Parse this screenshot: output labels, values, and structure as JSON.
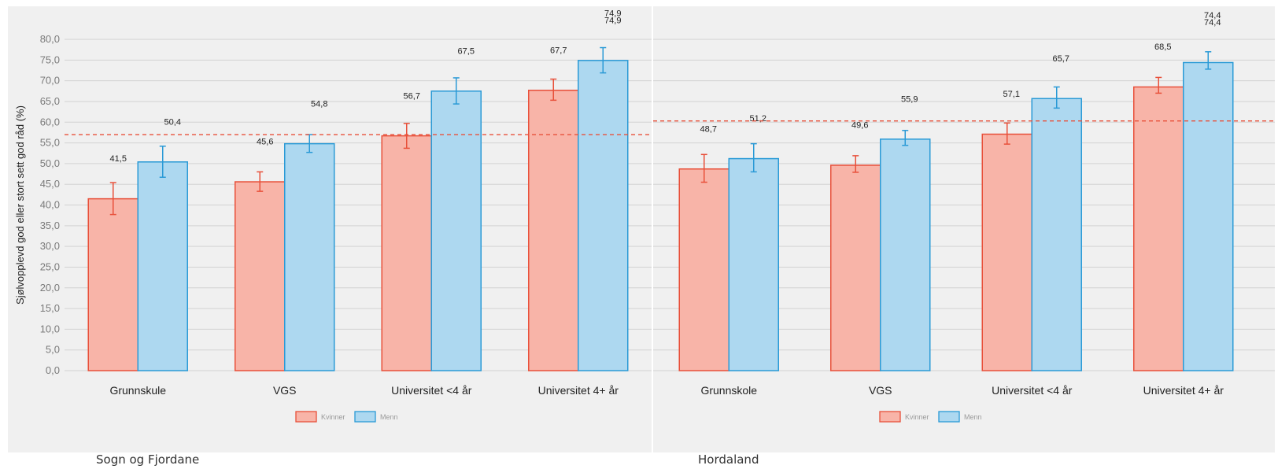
{
  "chart_data": [
    {
      "type": "bar",
      "panel_label": "Sogn og Fjordane",
      "ylabel": "Sjølvopplevd god eller stort sett god råd (%)",
      "ylim": [
        0,
        80
      ],
      "yticks": [
        "0,0",
        "5,0",
        "10,0",
        "15,0",
        "20,0",
        "25,0",
        "30,0",
        "35,0",
        "40,0",
        "45,0",
        "50,0",
        "55,0",
        "60,0",
        "65,0",
        "70,0",
        "75,0",
        "80,0"
      ],
      "categories": [
        "Grunnskule",
        "VGS",
        "Universitet <4 år",
        "Universitet 4+ år"
      ],
      "reference_line": 57.0,
      "series": [
        {
          "name": "Kvinner",
          "color": "#f8b4a8",
          "edge": "#e8503a",
          "values": [
            41.5,
            45.6,
            56.7,
            67.7
          ],
          "err_low": [
            37.7,
            43.3,
            53.7,
            65.3
          ],
          "err_high": [
            45.4,
            48.0,
            59.7,
            70.4
          ],
          "labels": [
            "41,5",
            "45,6",
            "56,7",
            "67,7"
          ]
        },
        {
          "name": "Menn",
          "color": "#add8f0",
          "edge": "#2a9ad6",
          "values": [
            50.4,
            54.8,
            67.5,
            74.9
          ],
          "err_low": [
            46.7,
            52.7,
            64.4,
            71.9
          ],
          "err_high": [
            54.2,
            57.0,
            70.7,
            78.0
          ],
          "labels": [
            "50,4",
            "54,8",
            "67,5",
            "74,9"
          ],
          "extra_labels": [
            "",
            "",
            "",
            "74,9"
          ]
        }
      ],
      "legend": [
        "Kvinner",
        "Menn"
      ],
      "legend_position": "bottom"
    },
    {
      "type": "bar",
      "panel_label": "Hordaland",
      "ylim": [
        0,
        80
      ],
      "categories": [
        "Grunnskole",
        "VGS",
        "Universitet <4 år",
        "Universitet 4+ år"
      ],
      "reference_line": 60.3,
      "series": [
        {
          "name": "Kvinner",
          "color": "#f8b4a8",
          "edge": "#e8503a",
          "values": [
            48.7,
            49.6,
            57.1,
            68.5
          ],
          "err_low": [
            45.5,
            47.9,
            54.7,
            67.0
          ],
          "err_high": [
            52.2,
            51.9,
            59.8,
            70.8
          ],
          "labels": [
            "48,7",
            "49,6",
            "57,1",
            "68,5"
          ]
        },
        {
          "name": "Menn",
          "color": "#add8f0",
          "edge": "#2a9ad6",
          "values": [
            51.2,
            55.9,
            65.7,
            74.4
          ],
          "err_low": [
            48.0,
            54.4,
            63.4,
            72.8
          ],
          "err_high": [
            54.8,
            58.0,
            68.5,
            77.0
          ],
          "labels": [
            "51,2",
            "55,9",
            "65,7",
            "74,4"
          ],
          "extra_labels": [
            "",
            "",
            "",
            "74,4"
          ]
        }
      ],
      "legend": [
        "Kvinner",
        "Menn"
      ],
      "legend_position": "bottom"
    }
  ]
}
